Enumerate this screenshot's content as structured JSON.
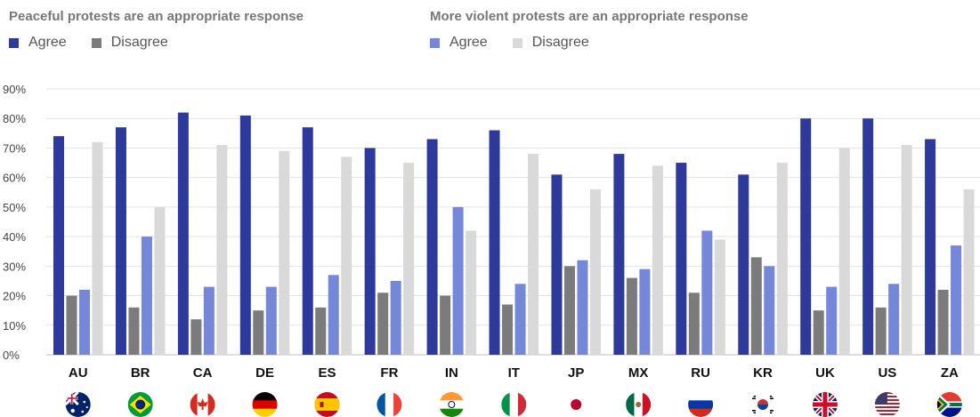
{
  "legend": {
    "groups": [
      {
        "title": "Peaceful protests are an appropriate response",
        "items": [
          {
            "label": "Agree",
            "color": "#2e3a9b"
          },
          {
            "label": "Disagree",
            "color": "#7b7b7b"
          }
        ]
      },
      {
        "title": "More violent protests are an appropriate response",
        "items": [
          {
            "label": "Agree",
            "color": "#7587d9"
          },
          {
            "label": "Disagree",
            "color": "#d9d9d9"
          }
        ]
      }
    ]
  },
  "chart_data": {
    "type": "bar",
    "categories": [
      "AU",
      "BR",
      "CA",
      "DE",
      "ES",
      "FR",
      "IN",
      "IT",
      "JP",
      "MX",
      "RU",
      "KR",
      "UK",
      "US",
      "ZA"
    ],
    "flags": [
      "australia-flag-icon",
      "brazil-flag-icon",
      "canada-flag-icon",
      "germany-flag-icon",
      "spain-flag-icon",
      "france-flag-icon",
      "india-flag-icon",
      "italy-flag-icon",
      "japan-flag-icon",
      "mexico-flag-icon",
      "russia-flag-icon",
      "south-korea-flag-icon",
      "uk-flag-icon",
      "us-flag-icon",
      "south-africa-flag-icon"
    ],
    "series": [
      {
        "values": [
          74,
          77,
          82,
          81,
          77,
          70,
          73,
          76,
          61,
          68,
          65,
          61,
          80,
          80,
          73
        ],
        "color": "#2e3a9b"
      },
      {
        "values": [
          20,
          16,
          12,
          15,
          16,
          21,
          20,
          17,
          30,
          26,
          21,
          33,
          15,
          16,
          22
        ],
        "color": "#7b7b7b"
      },
      {
        "values": [
          22,
          40,
          23,
          23,
          27,
          25,
          50,
          24,
          32,
          29,
          42,
          30,
          23,
          24,
          37
        ],
        "color": "#7587d9"
      },
      {
        "values": [
          72,
          50,
          71,
          69,
          67,
          65,
          42,
          68,
          56,
          64,
          39,
          65,
          70,
          71,
          56
        ],
        "color": "#d9d9d9"
      }
    ],
    "y_ticks": [
      "0%",
      "10%",
      "20%",
      "30%",
      "40%",
      "50%",
      "60%",
      "70%",
      "80%",
      "90%"
    ],
    "ylim": [
      0,
      90
    ],
    "grid": true,
    "legend_position": "top-left"
  }
}
